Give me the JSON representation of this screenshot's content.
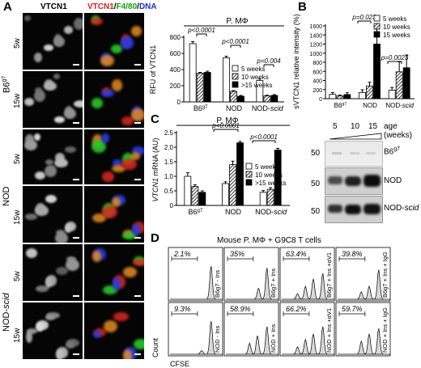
{
  "panels": {
    "a": "A",
    "b": "B",
    "c": "C",
    "d": "D"
  },
  "panel_a": {
    "col1": "VTCN1",
    "col2": [
      {
        "t": "VTCN1",
        "c": "#e01b1b"
      },
      {
        "t": "/",
        "c": "#000000"
      },
      {
        "t": "F4/80",
        "c": "#11a011"
      },
      {
        "t": "/",
        "c": "#000000"
      },
      {
        "t": "DNA",
        "c": "#1c2fd6"
      }
    ],
    "groups": [
      "B6",
      "NOD",
      "NOD-"
    ],
    "group_suffix": {
      "b6": "g7",
      "nodscid": "scid"
    },
    "rows": [
      "5w",
      "15w",
      "5w",
      "15w",
      "5w",
      "15w"
    ],
    "chart_title": "P. MΦ",
    "ylabel": "RFU of VTCN1",
    "legend": [
      "5 weeks",
      "10 weeks",
      ">15 weeks"
    ],
    "pvals": [
      "p<0.0001",
      "p<0.0001",
      "p=0.004"
    ],
    "xlabels": [
      "B6",
      "NOD",
      "NOD-"
    ],
    "yticks": [
      "0",
      "200",
      "400",
      "600",
      "800"
    ]
  },
  "panel_b": {
    "ylabel": "sVTCN1 relative intensity (%)",
    "legend": [
      "5 weeks",
      "10 weeks",
      "15 weeks"
    ],
    "pvals": [
      "p=0.023",
      "p=0.0023"
    ],
    "xlabels": [
      "B6",
      "NOD",
      "NOD-"
    ],
    "yticks": [
      "0",
      "200",
      "400",
      "600",
      "800",
      "1000",
      "1200",
      "1400",
      "1600"
    ],
    "blot_ages": [
      "5",
      "10",
      "15"
    ],
    "blot_age_label": "age",
    "blot_age_unit": "(weeks)",
    "blot_mw": [
      "50",
      "50",
      "50"
    ],
    "blot_rows": [
      "B6",
      "NOD",
      "NOD-"
    ]
  },
  "panel_c": {
    "title": "P. MΦ",
    "ylabel_italic": "VTCN1",
    "ylabel_rest": " mRNA (AU)",
    "legend": [
      "5 weeks",
      "10 weeks",
      ">15 weeks"
    ],
    "pvals": [
      "p<0.0001",
      "p<0.0001"
    ],
    "xlabels": [
      "B6",
      "NOD",
      "NOD-"
    ],
    "yticks": [
      "0",
      "0.5",
      "1.0",
      "1.5",
      "2.0",
      "2.5"
    ]
  },
  "panel_d": {
    "title": "Mouse P. MΦ + G9C8 T cells",
    "ylabel": "Count",
    "xlabel": "CFSE",
    "top": [
      {
        "pct": "2.1%",
        "label": "B6g7 - Ins"
      },
      {
        "pct": "35%",
        "label": "B6g7 + Ins"
      },
      {
        "pct": "63.4%",
        "label": "B6g7 + Ins +αV1"
      },
      {
        "pct": "39.8%",
        "label": "B6g7 + Ins + IgG"
      }
    ],
    "bottom": [
      {
        "pct": "9.3%",
        "label": "NOD - Ins"
      },
      {
        "pct": "58.9%",
        "label": "NOD + Ins"
      },
      {
        "pct": "66.2%",
        "label": "NOD + Ins +αV1"
      },
      {
        "pct": "59.7%",
        "label": "NOD + Ins + IgG"
      }
    ]
  },
  "chart_data": [
    {
      "type": "bar",
      "title": "P. MΦ",
      "ylabel": "RFU of VTCN1",
      "categories": [
        "B6g7",
        "NOD",
        "NOD-scid"
      ],
      "ylim": [
        0,
        800
      ],
      "series": [
        {
          "name": "5 weeks",
          "values": [
            720,
            545,
            265
          ]
        },
        {
          "name": "10 weeks",
          "values": [
            355,
            130,
            75
          ]
        },
        {
          "name": ">15 weeks",
          "values": [
            365,
            70,
            80
          ]
        }
      ]
    },
    {
      "type": "bar",
      "ylabel": "sVTCN1 relative intensity (%)",
      "categories": [
        "B6g7",
        "NOD",
        "NOD-scid"
      ],
      "ylim": [
        0,
        1600
      ],
      "series": [
        {
          "name": "5 weeks",
          "values": [
            95,
            135,
            185
          ]
        },
        {
          "name": "10 weeks",
          "values": [
            60,
            280,
            590
          ]
        },
        {
          "name": "15 weeks",
          "values": [
            90,
            1200,
            680
          ]
        }
      ]
    },
    {
      "type": "bar",
      "title": "P. MΦ",
      "ylabel": "VTCN1 mRNA (AU)",
      "categories": [
        "B6g7",
        "NOD",
        "NOD-scid"
      ],
      "ylim": [
        0,
        2.5
      ],
      "series": [
        {
          "name": "5 weeks",
          "values": [
            1.0,
            0.75,
            0.45
          ]
        },
        {
          "name": "10 weeks",
          "values": [
            0.65,
            1.4,
            0.55
          ]
        },
        {
          "name": ">15 weeks",
          "values": [
            0.45,
            2.15,
            1.9
          ]
        }
      ]
    }
  ],
  "colors": {
    "bar_white": "#ffffff",
    "bar_black": "#000000",
    "hist_fill": "#d9d9d9"
  }
}
